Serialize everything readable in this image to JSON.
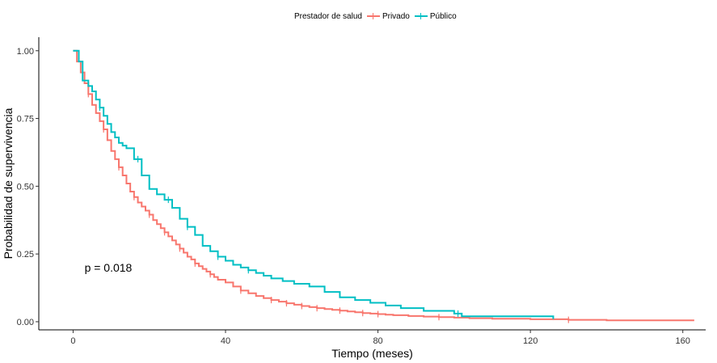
{
  "legend": {
    "title": "Prestador de salud",
    "items": [
      {
        "label": "Privado",
        "color": "#F8766D"
      },
      {
        "label": "Público",
        "color": "#00BFC4"
      }
    ]
  },
  "chart_data": {
    "type": "line",
    "step": true,
    "xlabel": "Tiempo (meses)",
    "ylabel": "Probabilidad de supervivencia",
    "xlim": [
      -9,
      166
    ],
    "ylim": [
      -0.03,
      1.05
    ],
    "xticks": [
      0,
      40,
      80,
      120,
      160
    ],
    "xtick_labels": [
      "0",
      "40",
      "80",
      "120",
      "160"
    ],
    "yticks": [
      0,
      0.25,
      0.5,
      0.75,
      1.0
    ],
    "ytick_labels": [
      "0.00",
      "0.25",
      "0.50",
      "0.75",
      "1.00"
    ],
    "grid": false,
    "legend_position": "top",
    "annotation": {
      "text": "p = 0.018",
      "x": 3,
      "y": 0.2
    },
    "series": [
      {
        "name": "Privado",
        "color": "#F8766D",
        "x": [
          0,
          1,
          2,
          3,
          4,
          5,
          6,
          7,
          8,
          9,
          10,
          11,
          12,
          13,
          14,
          15,
          16,
          17,
          18,
          19,
          20,
          21,
          22,
          23,
          24,
          25,
          26,
          27,
          28,
          29,
          30,
          31,
          32,
          33,
          34,
          35,
          36,
          37,
          38,
          40,
          42,
          44,
          46,
          48,
          50,
          52,
          54,
          56,
          58,
          60,
          62,
          64,
          66,
          68,
          70,
          72,
          74,
          76,
          78,
          80,
          82,
          84,
          88,
          92,
          96,
          100,
          104,
          110,
          120,
          130,
          140,
          163
        ],
        "y": [
          1.0,
          0.96,
          0.92,
          0.88,
          0.84,
          0.8,
          0.77,
          0.74,
          0.71,
          0.67,
          0.63,
          0.6,
          0.57,
          0.54,
          0.51,
          0.48,
          0.46,
          0.44,
          0.425,
          0.41,
          0.395,
          0.375,
          0.36,
          0.345,
          0.33,
          0.315,
          0.3,
          0.285,
          0.27,
          0.255,
          0.24,
          0.23,
          0.215,
          0.205,
          0.195,
          0.185,
          0.175,
          0.165,
          0.155,
          0.145,
          0.13,
          0.115,
          0.105,
          0.095,
          0.087,
          0.08,
          0.074,
          0.068,
          0.063,
          0.058,
          0.054,
          0.05,
          0.047,
          0.044,
          0.041,
          0.038,
          0.035,
          0.032,
          0.03,
          0.028,
          0.026,
          0.024,
          0.021,
          0.019,
          0.017,
          0.015,
          0.013,
          0.011,
          0.009,
          0.007,
          0.005,
          0.005
        ],
        "censored_x": [
          4,
          8,
          12,
          16,
          20,
          24,
          28,
          32,
          36,
          44,
          52,
          56,
          60,
          64,
          70,
          76,
          80,
          96,
          130
        ]
      },
      {
        "name": "Público",
        "color": "#00BFC4",
        "x": [
          0,
          1.5,
          2.5,
          4,
          5,
          6,
          7,
          8,
          9,
          10,
          11,
          12,
          13,
          14,
          16,
          18,
          20,
          22,
          24,
          26,
          28,
          30,
          32,
          34,
          36,
          38,
          40,
          42,
          44,
          46,
          48,
          50,
          52,
          55,
          58,
          62,
          66,
          70,
          74,
          78,
          82,
          86,
          92,
          100,
          102,
          126
        ],
        "y": [
          1.0,
          0.96,
          0.89,
          0.87,
          0.85,
          0.82,
          0.79,
          0.76,
          0.73,
          0.7,
          0.68,
          0.66,
          0.65,
          0.64,
          0.6,
          0.54,
          0.49,
          0.47,
          0.45,
          0.42,
          0.38,
          0.35,
          0.32,
          0.28,
          0.26,
          0.24,
          0.225,
          0.21,
          0.2,
          0.19,
          0.18,
          0.17,
          0.16,
          0.15,
          0.14,
          0.13,
          0.11,
          0.09,
          0.08,
          0.07,
          0.06,
          0.05,
          0.04,
          0.03,
          0.02,
          0.01
        ],
        "censored_x": [
          7,
          17,
          25,
          30,
          38,
          46,
          101
        ]
      }
    ]
  }
}
